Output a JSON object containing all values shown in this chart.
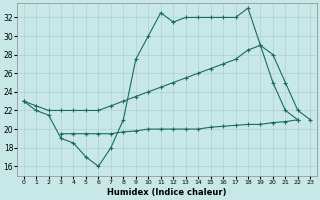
{
  "xlabel": "Humidex (Indice chaleur)",
  "bg_color": "#c8e8e8",
  "line_color": "#1a6b5a",
  "grid_color": "#b0d0d0",
  "xlim": [
    -0.5,
    23.5
  ],
  "ylim": [
    15.0,
    33.5
  ],
  "yticks": [
    16,
    18,
    20,
    22,
    24,
    26,
    28,
    30,
    32
  ],
  "xticks": [
    0,
    1,
    2,
    3,
    4,
    5,
    6,
    7,
    8,
    9,
    10,
    11,
    12,
    13,
    14,
    15,
    16,
    17,
    18,
    19,
    20,
    21,
    22,
    23
  ],
  "line1_y": [
    23,
    22,
    21.5,
    19,
    18.5,
    17,
    16,
    18,
    21,
    27.5,
    30,
    32.5,
    31.5,
    32,
    32,
    32,
    32,
    32,
    33,
    29,
    25,
    22,
    21,
    null
  ],
  "line2_y": [
    23,
    22.5,
    22,
    22,
    22,
    22,
    22,
    22.5,
    23,
    23.5,
    24,
    24.5,
    25,
    25.5,
    26,
    26.5,
    27,
    27.5,
    28.5,
    29,
    28,
    25,
    22,
    21
  ],
  "line3_y": [
    null,
    null,
    null,
    19.5,
    19.5,
    19.5,
    19.5,
    19.5,
    19.7,
    19.8,
    20.0,
    20.0,
    20.0,
    20.0,
    20.0,
    20.2,
    20.3,
    20.4,
    20.5,
    20.5,
    20.7,
    20.8,
    21.0,
    null
  ]
}
